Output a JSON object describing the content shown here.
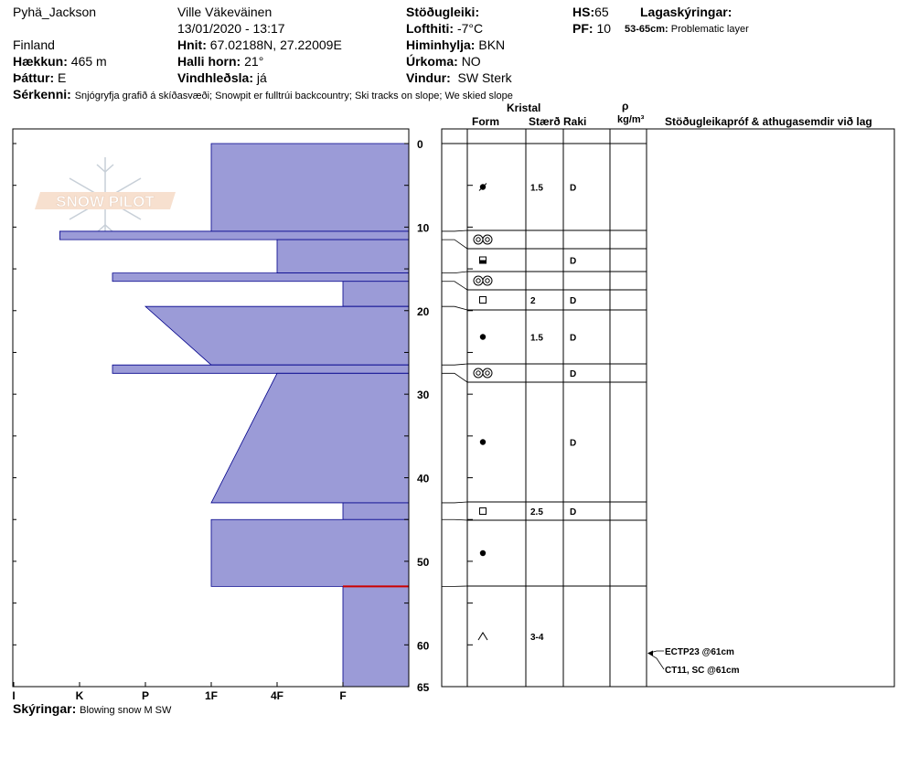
{
  "header": {
    "location": "Pyhä_Jackson",
    "observer": "Ville Väkeväinen",
    "datetime": "13/01/2020 - 13:17",
    "country": "Finland",
    "coords_label": "Hnit:",
    "coords": "67.02188N, 27.22009E",
    "elevation_label": "Hækkun:",
    "elevation": "465 m",
    "slope_label": "Halli horn:",
    "slope": "21°",
    "aspect_label": "Þáttur:",
    "aspect": "E",
    "wind_loading_label": "Vindhleðsla:",
    "wind_loading": "já",
    "stability_label": "Stöðugleiki:",
    "stability": "",
    "air_temp_label": "Lofthiti:",
    "air_temp": "-7°C",
    "sky_label": "Himinhylja:",
    "sky": "BKN",
    "precip_label": "Úrkoma:",
    "precip": "NO",
    "wind_label": "Vindur:",
    "wind": "SW Sterk",
    "hs_label": "HS:",
    "hs": "65",
    "pf_label": "PF:",
    "pf": "10",
    "layer_notes_label": "Lagaskýringar:",
    "layer_notes_range": "53-65cm:",
    "layer_notes_text": "Problematic layer",
    "features_label": "Sérkenni:",
    "features": "Snjógryfja grafið á skíðasvæði; Snowpit er fulltrúi backcountry; Ski tracks on slope; We skied slope",
    "notes_label": "Skýringar:",
    "notes": "Blowing snow M SW"
  },
  "table_headers": {
    "crystal": "Kristal",
    "form": "Form",
    "size": "Stærð",
    "moisture": "Raki",
    "density_symbol": "ρ",
    "density_unit": "kg/m³",
    "tests": "Stöðugleikapróf & athugasemdir við lag"
  },
  "watermark": "SNOW PILOT",
  "colors": {
    "fill": "#9b9bd7",
    "edge": "#00008b",
    "problem": "#cc0000"
  },
  "chart_data": {
    "type": "bar",
    "orientation": "horizontal",
    "x_categories": [
      "I",
      "K",
      "P",
      "1F",
      "4F",
      "F"
    ],
    "x_values": [
      6,
      5,
      4,
      3,
      2,
      1
    ],
    "y_ticks": [
      0,
      10,
      20,
      30,
      40,
      50,
      60,
      65
    ],
    "ylim": [
      0,
      65
    ],
    "y_reversed": true,
    "layers": [
      {
        "top": 0,
        "bottom": 10.5,
        "h_top": 3,
        "h_bottom": 3,
        "form": "rounding",
        "size": "1.5",
        "moisture": "D"
      },
      {
        "top": 10.5,
        "bottom": 11.5,
        "h_top": 5.3,
        "h_bottom": 5.3,
        "form": "surface-hoar",
        "size": "",
        "moisture": ""
      },
      {
        "top": 11.5,
        "bottom": 15.5,
        "h_top": 2,
        "h_bottom": 2,
        "form": "melt-freeze",
        "size": "",
        "moisture": "D"
      },
      {
        "top": 15.5,
        "bottom": 16.5,
        "h_top": 4.5,
        "h_bottom": 4.5,
        "form": "surface-hoar",
        "size": "",
        "moisture": ""
      },
      {
        "top": 16.5,
        "bottom": 19.5,
        "h_top": 1,
        "h_bottom": 1,
        "form": "faceted",
        "size": "2",
        "moisture": "D"
      },
      {
        "top": 19.5,
        "bottom": 26.5,
        "h_top": 4,
        "h_bottom": 3,
        "form": "rounded",
        "size": "1.5",
        "moisture": "D"
      },
      {
        "top": 26.5,
        "bottom": 27.5,
        "h_top": 4.5,
        "h_bottom": 4.5,
        "form": "surface-hoar",
        "size": "",
        "moisture": "D"
      },
      {
        "top": 27.5,
        "bottom": 43,
        "h_top": 2,
        "h_bottom": 3,
        "form": "rounded",
        "size": "",
        "moisture": "D"
      },
      {
        "top": 43,
        "bottom": 45,
        "h_top": 1,
        "h_bottom": 1,
        "form": "faceted",
        "size": "2.5",
        "moisture": "D"
      },
      {
        "top": 45,
        "bottom": 53,
        "h_top": 3,
        "h_bottom": 3,
        "form": "rounded",
        "size": "",
        "moisture": ""
      },
      {
        "top": 53,
        "bottom": 65,
        "h_top": 1,
        "h_bottom": 1,
        "form": "depth-hoar",
        "size": "3-4",
        "moisture": ""
      }
    ],
    "problem_layer_depth": 53,
    "tests": [
      {
        "depth": 61,
        "label": "ECTP23 @61cm"
      },
      {
        "depth": 61,
        "label": "CT11, SC @61cm"
      }
    ]
  }
}
